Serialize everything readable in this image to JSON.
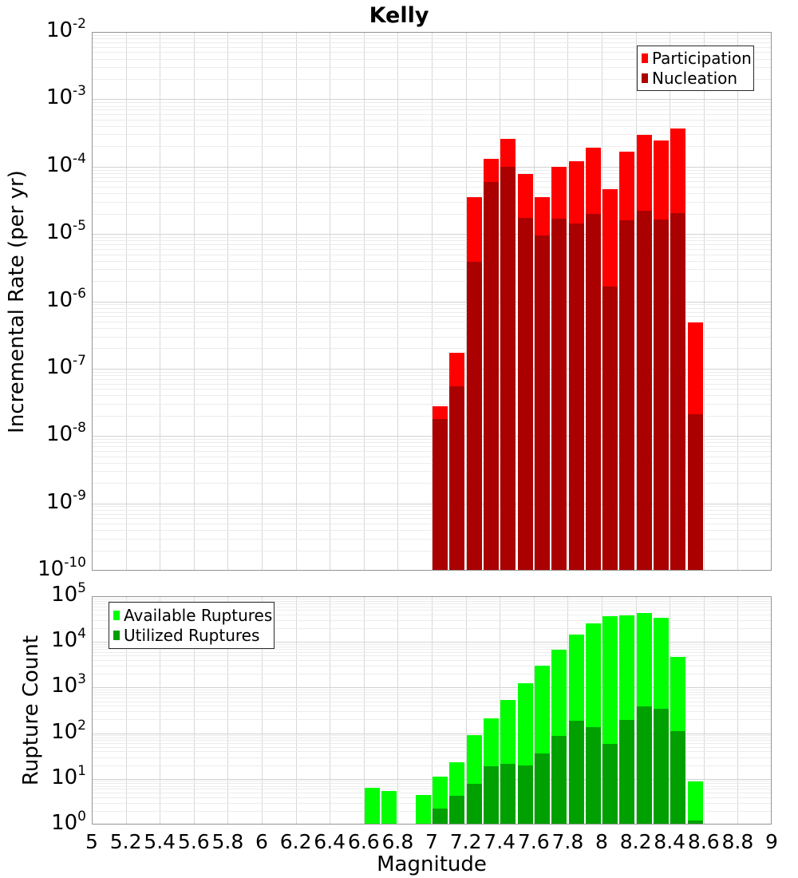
{
  "figure_title": "Kelly",
  "chart_data": [
    {
      "type": "bar",
      "title": "Kelly",
      "ylabel": "Incremental Rate (per yr)",
      "xlim": [
        5,
        9
      ],
      "ylim": [
        1e-10,
        0.01
      ],
      "y_scale": "log",
      "grid": true,
      "legend_position": "top-right",
      "y_tick_exponents": [
        -2,
        -3,
        -4,
        -5,
        -6,
        -7,
        -8,
        -9,
        -10
      ],
      "bin_width": 0.1,
      "categories": [
        7.05,
        7.15,
        7.25,
        7.35,
        7.45,
        7.55,
        7.65,
        7.75,
        7.85,
        7.95,
        8.05,
        8.15,
        8.25,
        8.35,
        8.45,
        8.55
      ],
      "series": [
        {
          "name": "Participation",
          "color": "#FF0000",
          "values": [
            2.8e-08,
            1.7e-07,
            3.5e-05,
            0.00013,
            0.00026,
            7.8e-05,
            3.5e-05,
            0.0001,
            0.00012,
            0.00019,
            4.6e-05,
            0.000165,
            0.000295,
            0.000245,
            0.00037,
            4.9e-07
          ]
        },
        {
          "name": "Nucleation",
          "color": "#AA0000",
          "values": [
            1.8e-08,
            5.5e-08,
            3.9e-06,
            5.9e-05,
            0.0001,
            1.75e-05,
            9.5e-06,
            1.7e-05,
            1.45e-05,
            2e-05,
            1.65e-06,
            1.6e-05,
            2.2e-05,
            1.65e-05,
            2.05e-05,
            2.1e-08
          ]
        }
      ]
    },
    {
      "type": "bar",
      "ylabel": "Rupture Count",
      "xlabel": "Magnitude",
      "xlim": [
        5,
        9
      ],
      "ylim": [
        1,
        100000.0
      ],
      "y_scale": "log",
      "grid": true,
      "legend_position": "top-left",
      "y_tick_exponents": [
        5,
        4,
        3,
        2,
        1,
        0
      ],
      "x_ticks": [
        "5",
        "5.2",
        "5.4",
        "5.6",
        "5.8",
        "6",
        "6.2",
        "6.4",
        "6.6",
        "6.8",
        "7",
        "7.2",
        "7.4",
        "7.6",
        "7.8",
        "8",
        "8.2",
        "8.4",
        "8.6",
        "8.8",
        "9"
      ],
      "bin_width": 0.1,
      "categories": [
        6.65,
        6.75,
        6.95,
        7.05,
        7.15,
        7.25,
        7.35,
        7.45,
        7.55,
        7.65,
        7.75,
        7.85,
        7.95,
        8.05,
        8.15,
        8.25,
        8.35,
        8.45,
        8.55
      ],
      "series": [
        {
          "name": "Available Ruptures",
          "color": "#00FF00",
          "values": [
            6.5,
            5.5,
            4.4,
            11,
            23,
            91,
            210,
            530,
            1240,
            3000,
            6700,
            14500,
            25500,
            36600,
            38000,
            43000,
            33700,
            4700,
            8.8
          ]
        },
        {
          "name": "Utilized Ruptures",
          "color": "#00A000",
          "values": [
            0,
            0,
            0,
            2.2,
            4.3,
            7.8,
            19,
            21,
            20,
            36,
            87,
            187,
            136,
            58,
            195,
            386,
            343,
            111,
            1.2
          ]
        }
      ]
    }
  ]
}
